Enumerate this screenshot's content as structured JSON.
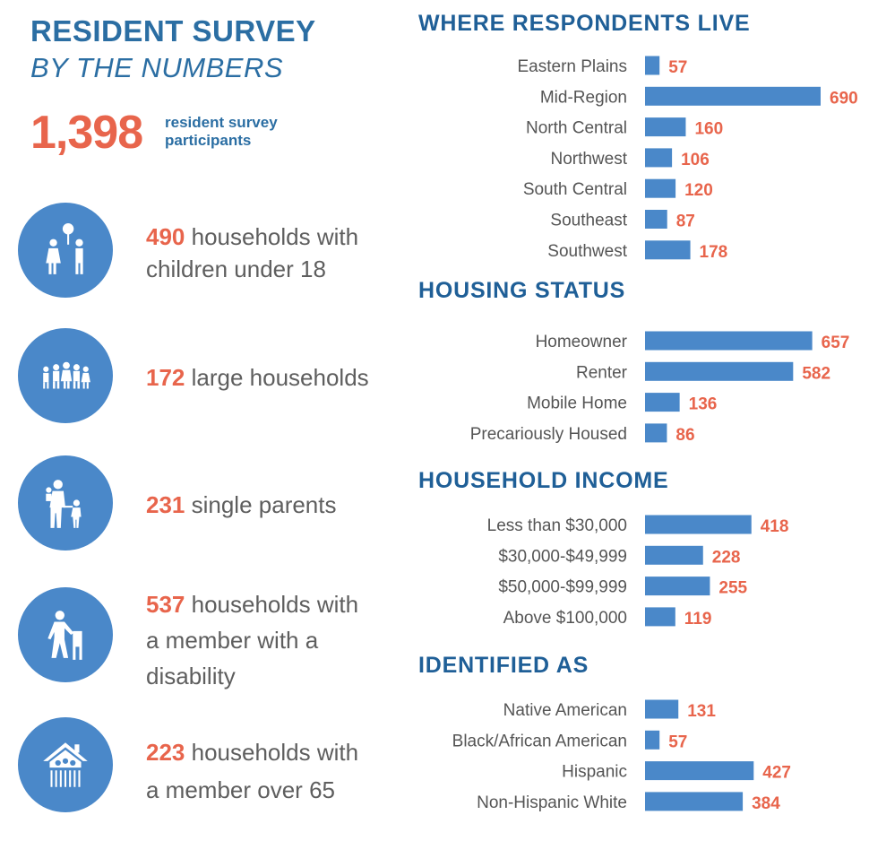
{
  "header": {
    "title_line1": "RESIDENT SURVEY",
    "title_line2": "BY THE NUMBERS"
  },
  "participants": {
    "number": "1,398",
    "label": "resident survey participants"
  },
  "stats": [
    {
      "icon": "family-with-children-icon",
      "number": "490",
      "text_line1": " households with",
      "text_line2": "children under 18",
      "text_line3": ""
    },
    {
      "icon": "large-household-icon",
      "number": "172",
      "text_line1": " large households",
      "text_line2": "",
      "text_line3": ""
    },
    {
      "icon": "single-parent-icon",
      "number": "231",
      "text_line1": " single parents",
      "text_line2": "",
      "text_line3": ""
    },
    {
      "icon": "person-with-walker-icon",
      "number": "537",
      "text_line1": " households with",
      "text_line2": "a member with a",
      "text_line3": "disability"
    },
    {
      "icon": "elder-home-icon",
      "number": "223",
      "text_line1": " households with",
      "text_line2": "a member over 65",
      "text_line3": ""
    }
  ],
  "colors": {
    "primary_blue": "#2b6ea3",
    "bar_blue": "#4a88c9",
    "accent_orange": "#e8654c",
    "text_gray": "#5e5e5e"
  },
  "chart_data": [
    {
      "type": "bar",
      "orientation": "horizontal",
      "title": "WHERE RESPONDENTS LIVE",
      "categories": [
        "Eastern Plains",
        "Mid-Region",
        "North Central",
        "Northwest",
        "South Central",
        "Southeast",
        "Southwest"
      ],
      "values": [
        57,
        690,
        160,
        106,
        120,
        87,
        178
      ],
      "xlim": [
        0,
        690
      ]
    },
    {
      "type": "bar",
      "orientation": "horizontal",
      "title": "HOUSING STATUS",
      "categories": [
        "Homeowner",
        "Renter",
        "Mobile Home",
        "Precariously Housed"
      ],
      "values": [
        657,
        582,
        136,
        86
      ],
      "xlim": [
        0,
        690
      ]
    },
    {
      "type": "bar",
      "orientation": "horizontal",
      "title": "HOUSEHOLD INCOME",
      "categories": [
        "Less than $30,000",
        "$30,000-$49,999",
        "$50,000-$99,999",
        "Above $100,000"
      ],
      "values": [
        418,
        228,
        255,
        119
      ],
      "xlim": [
        0,
        690
      ]
    },
    {
      "type": "bar",
      "orientation": "horizontal",
      "title": "IDENTIFIED AS",
      "categories": [
        "Native American",
        "Black/African American",
        "Hispanic",
        "Non-Hispanic White"
      ],
      "values": [
        131,
        57,
        427,
        384
      ],
      "xlim": [
        0,
        690
      ]
    }
  ]
}
